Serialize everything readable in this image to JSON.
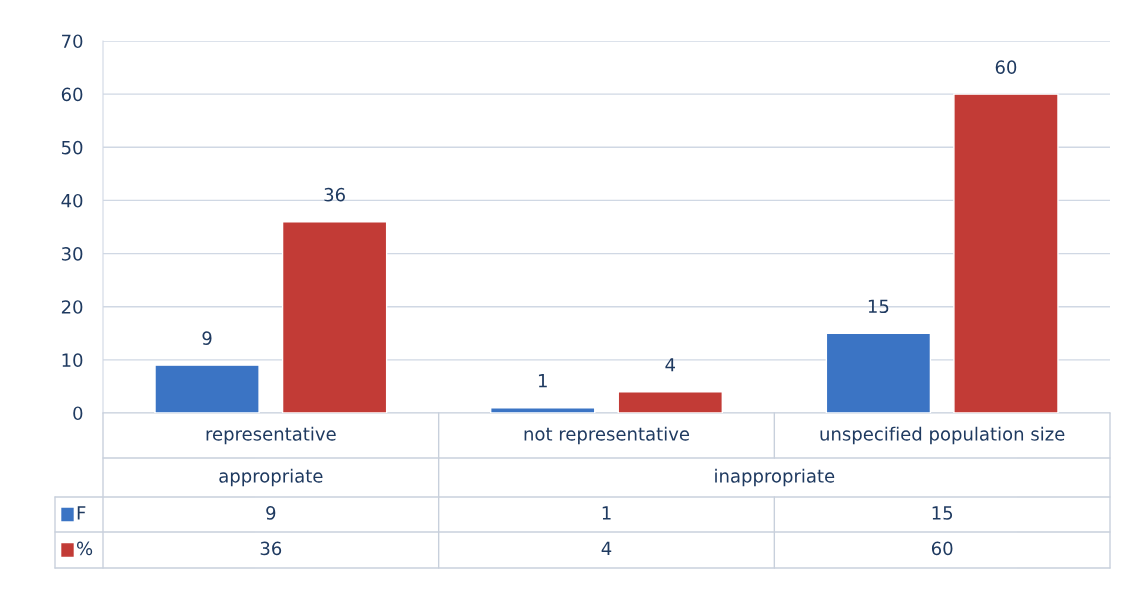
{
  "chart_data": {
    "type": "bar",
    "categories": [
      "representative",
      "not representative",
      "unspecified population size"
    ],
    "series": [
      {
        "name": "F",
        "color": "#3b74c4",
        "values": [
          9,
          1,
          15
        ],
        "value_labels": [
          "9",
          "1",
          "15"
        ]
      },
      {
        "name": "%",
        "color": "#c23b36",
        "values": [
          36,
          4,
          60
        ],
        "value_labels": [
          "36",
          "4",
          "60"
        ]
      }
    ],
    "annotations": [
      "appropriate",
      "inappropriate",
      "9",
      "1",
      "15",
      "36",
      "4",
      "60"
    ],
    "ylim": [
      0,
      70
    ],
    "yticks": [
      0,
      10,
      20,
      30,
      40,
      50,
      60,
      70
    ],
    "grid": "y",
    "legend": "bottom"
  }
}
